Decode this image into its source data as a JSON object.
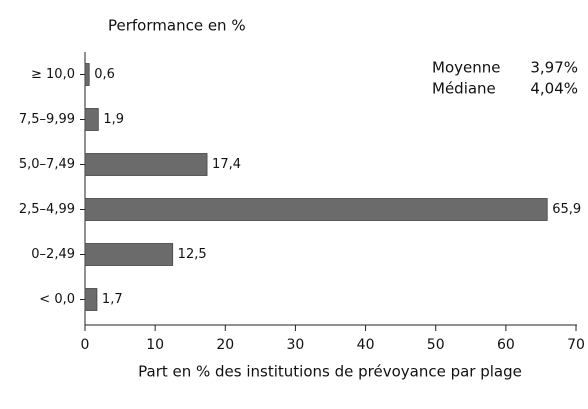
{
  "chart_data": {
    "type": "hbar",
    "title": "Performance en %",
    "xlabel": "Part en % des institutions de prévoyance par plage",
    "categories": [
      "≥ 10,0",
      "7,5–9,99",
      "5,0–7,49",
      "2,5–4,99",
      "0–2,49",
      "< 0,0"
    ],
    "values": [
      0.6,
      1.9,
      17.4,
      65.9,
      12.5,
      1.7
    ],
    "value_labels": [
      "0,6",
      "1,9",
      "17,4",
      "65,9",
      "12,5",
      "1,7"
    ],
    "color": "#6b6b6b",
    "xlim": [
      0,
      70
    ],
    "xticks": [
      0,
      10,
      20,
      30,
      40,
      50,
      60,
      70
    ],
    "annotations": [
      {
        "label": "Moyenne",
        "value": "3,97%"
      },
      {
        "label": "Médiane",
        "value": "4,04%"
      }
    ]
  }
}
